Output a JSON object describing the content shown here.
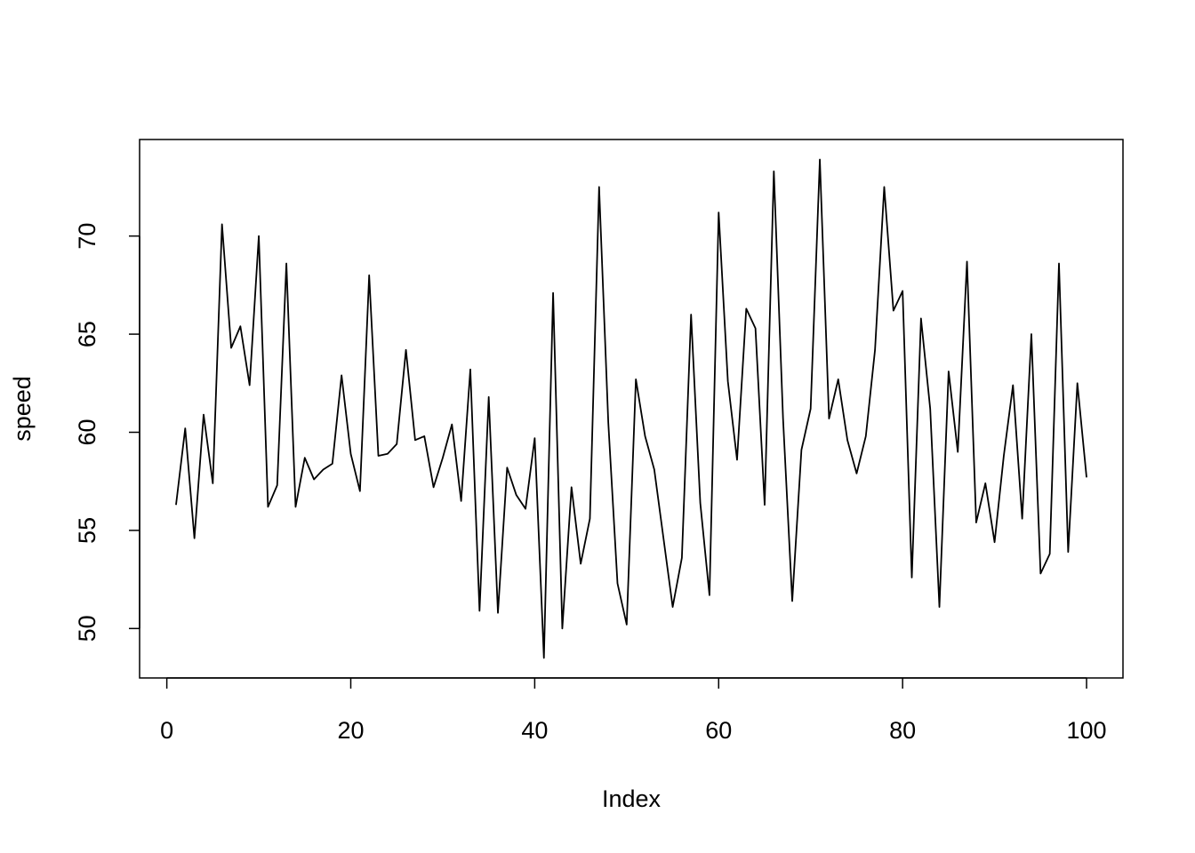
{
  "chart_data": {
    "type": "line",
    "x_label": "Index",
    "y_label": "speed",
    "x": [
      1,
      2,
      3,
      4,
      5,
      6,
      7,
      8,
      9,
      10,
      11,
      12,
      13,
      14,
      15,
      16,
      17,
      18,
      19,
      20,
      21,
      22,
      23,
      24,
      25,
      26,
      27,
      28,
      29,
      30,
      31,
      32,
      33,
      34,
      35,
      36,
      37,
      38,
      39,
      40,
      41,
      42,
      43,
      44,
      45,
      46,
      47,
      48,
      49,
      50,
      51,
      52,
      53,
      54,
      55,
      56,
      57,
      58,
      59,
      60,
      61,
      62,
      63,
      64,
      65,
      66,
      67,
      68,
      69,
      70,
      71,
      72,
      73,
      74,
      75,
      76,
      77,
      78,
      79,
      80,
      81,
      82,
      83,
      84,
      85,
      86,
      87,
      88,
      89,
      90,
      91,
      92,
      93,
      94,
      95,
      96,
      97,
      98,
      99,
      100
    ],
    "series": [
      {
        "name": "speed",
        "color": "#000000",
        "values": [
          56.3,
          60.2,
          54.6,
          60.9,
          57.4,
          70.6,
          64.3,
          65.4,
          62.4,
          70.0,
          56.2,
          57.3,
          68.6,
          56.2,
          58.7,
          57.6,
          58.1,
          58.4,
          62.9,
          58.9,
          57.0,
          68.0,
          58.8,
          58.9,
          59.4,
          64.2,
          59.6,
          59.8,
          57.2,
          58.7,
          60.4,
          56.5,
          63.2,
          50.9,
          61.8,
          50.8,
          58.2,
          56.8,
          56.1,
          59.7,
          48.5,
          67.1,
          50.0,
          57.2,
          53.3,
          55.6,
          72.5,
          60.5,
          52.3,
          50.2,
          62.7,
          59.8,
          58.1,
          54.6,
          51.1,
          53.6,
          66.0,
          56.4,
          51.7,
          71.2,
          62.6,
          58.6,
          66.3,
          65.3,
          56.3,
          73.3,
          60.7,
          51.4,
          59.1,
          61.2,
          73.9,
          60.7,
          62.7,
          59.6,
          57.9,
          59.8,
          64.2,
          72.5,
          66.2,
          67.2,
          52.6,
          65.8,
          61.2,
          51.1,
          63.1,
          59.0,
          68.7,
          55.4,
          57.4,
          54.4,
          58.8,
          62.4,
          55.6,
          65.0,
          52.8,
          53.8,
          68.6,
          53.9,
          62.5,
          57.7
        ]
      }
    ],
    "xlim": [
      -2.96,
      103.96
    ],
    "ylim": [
      47.48,
      74.92
    ],
    "xticks": [
      0,
      20,
      40,
      60,
      80,
      100
    ],
    "yticks": [
      50,
      55,
      60,
      65,
      70
    ],
    "grid": false
  }
}
